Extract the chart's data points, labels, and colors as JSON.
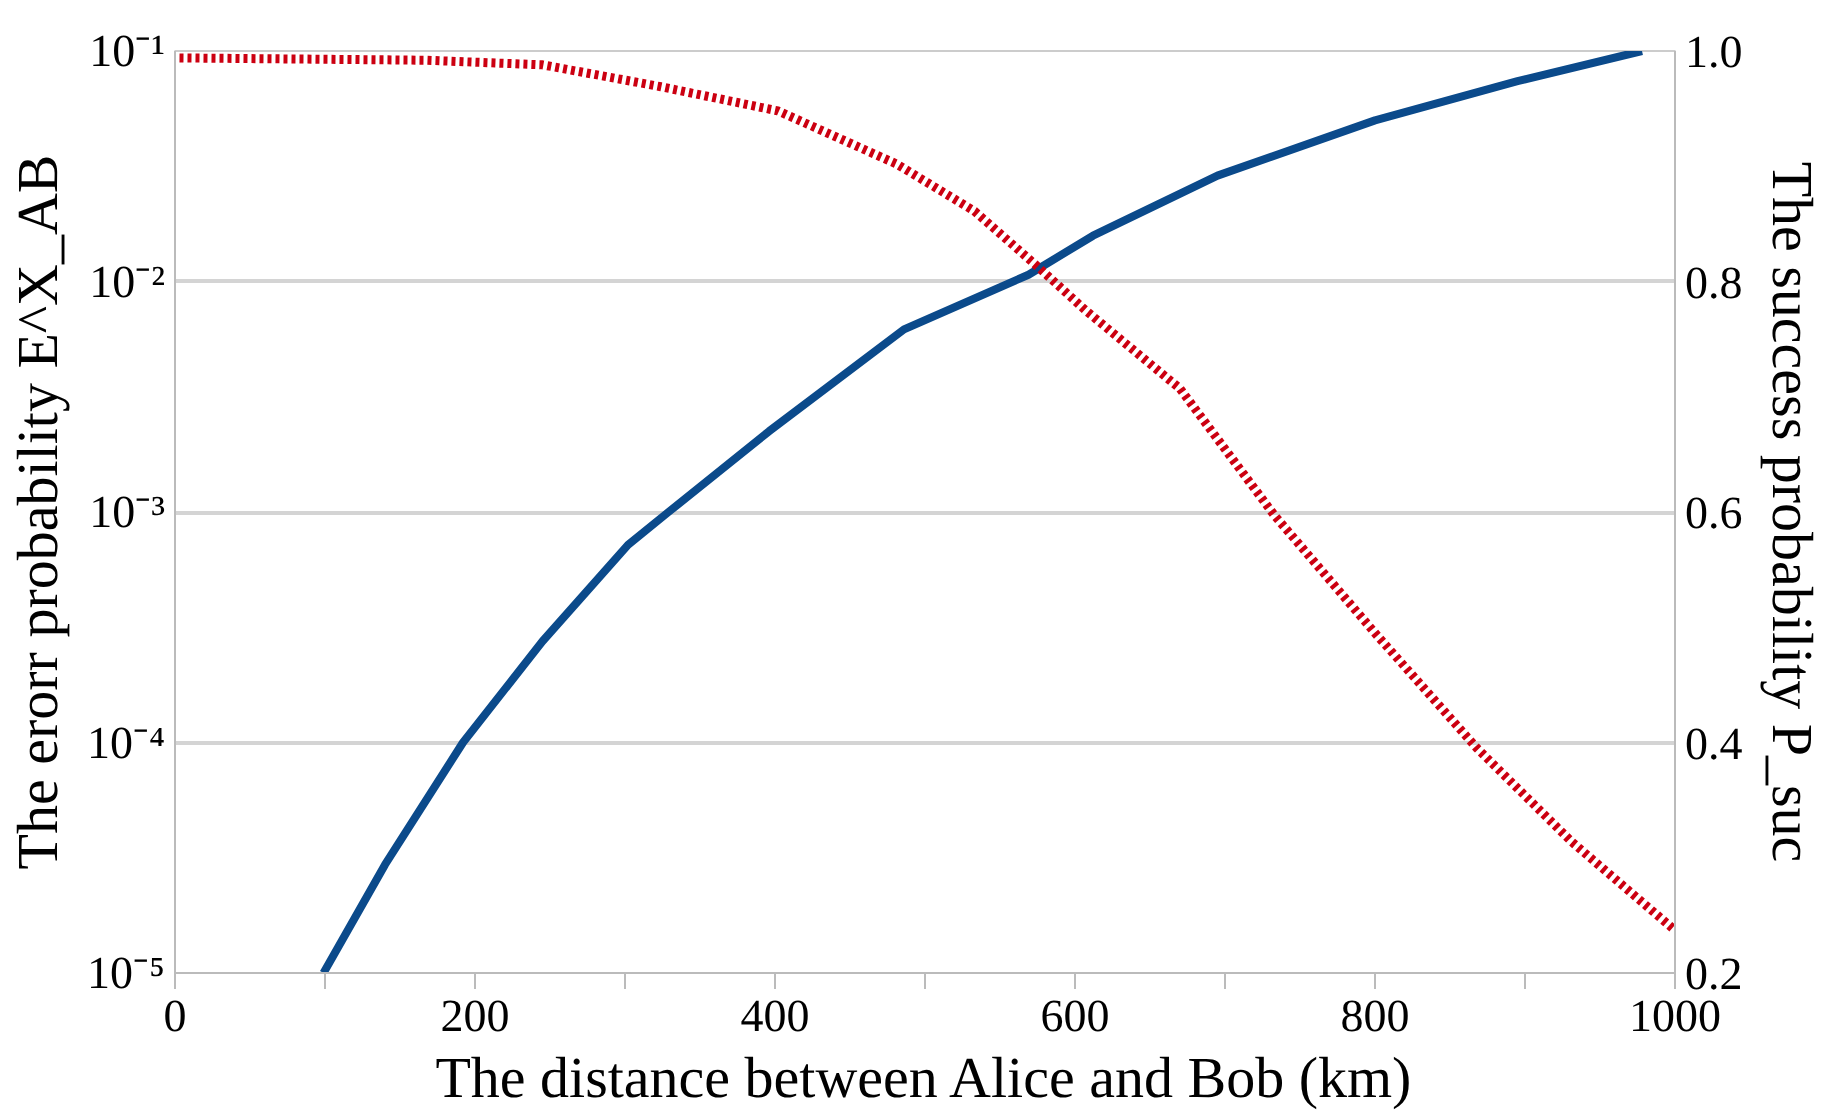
{
  "chart_data": {
    "type": "line",
    "xlabel": "The distance between Alice and Bob (km)",
    "ylabel": "The erorr probability E^X_AB",
    "y2label": "The success probability P_suc",
    "log": "y",
    "grid": "y",
    "marker": "none",
    "xlim": [
      0,
      1000
    ],
    "xticks": [
      0,
      {
        "value": 100,
        "label": null
      },
      200,
      {
        "value": 300,
        "label": null
      },
      400,
      {
        "value": 500,
        "label": null
      },
      600,
      {
        "value": 700,
        "label": null
      },
      800,
      {
        "value": 900,
        "label": null
      },
      1000
    ],
    "ylim": [
      1e-05,
      0.1
    ],
    "yticks": [
      {
        "value": 1e-05,
        "label": "10⁻⁵"
      },
      {
        "value": 0.0001,
        "label": "10⁻⁴"
      },
      {
        "value": 0.001,
        "label": "10⁻³"
      },
      {
        "value": 0.01,
        "label": "10⁻²"
      },
      {
        "value": 0.1,
        "label": "10⁻¹"
      }
    ],
    "y2lim": [
      0.2,
      1.0
    ],
    "y2ticks": [
      0.2,
      0.4,
      0.6,
      0.8,
      {
        "value": 1.0,
        "label": "1.0"
      }
    ],
    "series": [
      {
        "color": "#0b4a8b",
        "line_style": "solid",
        "x": [
          99,
          140,
          192,
          245,
          302,
          329,
          396,
          486,
          569,
          612,
          695,
          800,
          895,
          978
        ],
        "values": [
          1e-05,
          2.95e-05,
          0.0001,
          0.000275,
          0.00072,
          0.001,
          0.00224,
          0.0062,
          0.0107,
          0.0158,
          0.0288,
          0.05,
          0.074,
          0.1
        ]
      },
      {
        "color": "#cc0011",
        "line_style": "dotted",
        "axis": "y2",
        "x": [
          3,
          167,
          245,
          324,
          402,
          481,
          533,
          575,
          607,
          670,
          733,
          800,
          868,
          931,
          1000
        ],
        "values": [
          0.994,
          0.992,
          0.988,
          0.969,
          0.948,
          0.902,
          0.861,
          0.813,
          0.775,
          0.707,
          0.597,
          0.495,
          0.395,
          0.314,
          0.237
        ]
      }
    ]
  }
}
